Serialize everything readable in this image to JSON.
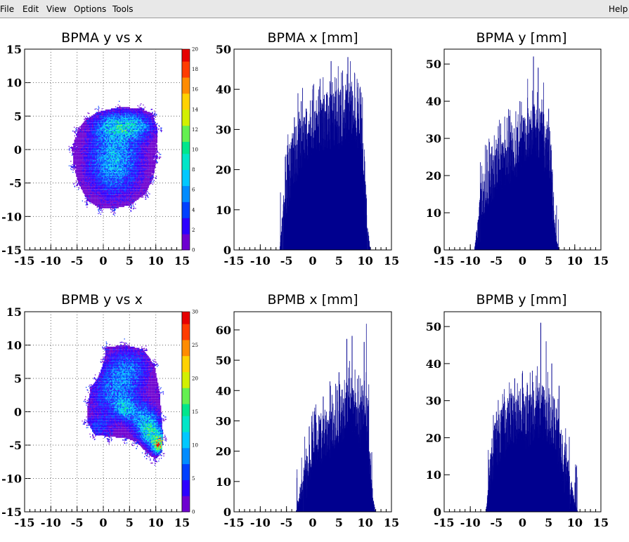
{
  "menubar": {
    "items": [
      {
        "id": "file",
        "label": "File"
      },
      {
        "id": "edit",
        "label": "Edit"
      },
      {
        "id": "view",
        "label": "View"
      },
      {
        "id": "options",
        "label": "Options"
      },
      {
        "id": "tools",
        "label": "Tools"
      }
    ],
    "help": "Help"
  },
  "colors": {
    "histogram_fill": "#00008f",
    "palette": [
      "#6e00d0",
      "#2c00ff",
      "#0040ff",
      "#008cff",
      "#00c8ff",
      "#00e6c8",
      "#00e68c",
      "#64f050",
      "#d2f000",
      "#ffd200",
      "#ff8c00",
      "#ff3c00",
      "#e60000"
    ]
  },
  "chart_data": [
    {
      "type": "heatmap",
      "title": "BPMA y vs x",
      "xlim": [
        -15,
        15
      ],
      "ylim": [
        -15,
        15
      ],
      "xticks": [
        "-15",
        "-10",
        "-5",
        "0",
        "5",
        "10",
        "15"
      ],
      "yticks": [
        "-15",
        "-10",
        "-5",
        "0",
        "5",
        "10",
        "15"
      ],
      "grid": true,
      "colorbar": {
        "min": 0,
        "max": 20,
        "labels": [
          "0",
          "2",
          "4",
          "6",
          "8",
          "10",
          "12",
          "14",
          "16",
          "18",
          "20"
        ]
      },
      "blobs": [
        {
          "cx": 2.0,
          "cy": -1.5,
          "sx": 3.6,
          "sy": 3.8,
          "amp": 6
        },
        {
          "cx": 5.0,
          "cy": 3.5,
          "sx": 3.0,
          "sy": 1.3,
          "amp": 6
        },
        {
          "cx": 0.5,
          "cy": 3.5,
          "sx": 1.8,
          "sy": 1.2,
          "amp": 2
        }
      ],
      "outline": [
        [
          -1,
          5.6
        ],
        [
          3,
          6.3
        ],
        [
          7,
          6.1
        ],
        [
          9.3,
          5.3
        ],
        [
          10.2,
          3
        ],
        [
          10.2,
          -1
        ],
        [
          9.4,
          -4.2
        ],
        [
          8,
          -6.6
        ],
        [
          5.2,
          -8.3
        ],
        [
          2,
          -8.9
        ],
        [
          -0.8,
          -8.8
        ],
        [
          -3.2,
          -7.6
        ],
        [
          -4.8,
          -5.2
        ],
        [
          -5.8,
          -2.5
        ],
        [
          -6.0,
          0.2
        ],
        [
          -5,
          2.8
        ],
        [
          -3.2,
          4.6
        ]
      ]
    },
    {
      "type": "bar",
      "title": "BPMA x [mm]",
      "xlim": [
        -15,
        15
      ],
      "ylim": [
        0,
        50
      ],
      "xticks": [
        "-15",
        "-10",
        "-5",
        "0",
        "5",
        "10",
        "15"
      ],
      "yticks": [
        "0",
        "10",
        "20",
        "30",
        "40",
        "50"
      ],
      "envelope": [
        [
          -15,
          0
        ],
        [
          -6.3,
          0
        ],
        [
          -5.8,
          6
        ],
        [
          -5.0,
          17
        ],
        [
          -4,
          22
        ],
        [
          -2,
          28
        ],
        [
          0,
          31
        ],
        [
          2,
          32
        ],
        [
          4,
          33
        ],
        [
          6,
          34
        ],
        [
          7,
          35
        ],
        [
          8,
          34
        ],
        [
          9,
          31
        ],
        [
          9.5,
          26
        ],
        [
          10.0,
          14
        ],
        [
          10.5,
          4
        ],
        [
          11.0,
          0
        ],
        [
          15,
          0
        ]
      ],
      "noise": 7,
      "peaks": [
        [
          -4.8,
          25
        ],
        [
          -3.5,
          33
        ],
        [
          -2.8,
          39
        ],
        [
          -2.2,
          37
        ],
        [
          0,
          40
        ],
        [
          2,
          43
        ],
        [
          3.5,
          47
        ],
        [
          5.5,
          42
        ],
        [
          6.7,
          48
        ],
        [
          8,
          44
        ],
        [
          9.5,
          38
        ]
      ]
    },
    {
      "type": "bar",
      "title": "BPMA y [mm]",
      "xlim": [
        -15,
        15
      ],
      "ylim": [
        0,
        54
      ],
      "xticks": [
        "-15",
        "-10",
        "-5",
        "0",
        "5",
        "10",
        "15"
      ],
      "yticks": [
        "0",
        "10",
        "20",
        "30",
        "40",
        "50"
      ],
      "envelope": [
        [
          -15,
          0
        ],
        [
          -9.2,
          0
        ],
        [
          -8.6,
          6
        ],
        [
          -8.0,
          12
        ],
        [
          -7,
          17
        ],
        [
          -5,
          22
        ],
        [
          -3,
          25
        ],
        [
          -1,
          28
        ],
        [
          1,
          31
        ],
        [
          2,
          33
        ],
        [
          3,
          32
        ],
        [
          4,
          30
        ],
        [
          5,
          27
        ],
        [
          5.5,
          20
        ],
        [
          6.0,
          8
        ],
        [
          6.5,
          2
        ],
        [
          7,
          0
        ],
        [
          15,
          0
        ]
      ],
      "noise": 7,
      "peaks": [
        [
          -8,
          18
        ],
        [
          -6,
          26
        ],
        [
          -4.2,
          34
        ],
        [
          -2.5,
          36
        ],
        [
          -0.5,
          40
        ],
        [
          1,
          46
        ],
        [
          2.1,
          52
        ],
        [
          3,
          49
        ],
        [
          4,
          45
        ],
        [
          5,
          38
        ]
      ]
    },
    {
      "type": "heatmap",
      "title": "BPMB y vs x",
      "xlim": [
        -15,
        15
      ],
      "ylim": [
        -15,
        15
      ],
      "xticks": [
        "-15",
        "-10",
        "-5",
        "0",
        "5",
        "10",
        "15"
      ],
      "yticks": [
        "-15",
        "-10",
        "-5",
        "0",
        "5",
        "10",
        "15"
      ],
      "grid": true,
      "colorbar": {
        "min": 0,
        "max": 30,
        "labels": [
          "0",
          "5",
          "10",
          "15",
          "20",
          "25",
          "30"
        ]
      },
      "blobs": [
        {
          "cx": 4.5,
          "cy": 6.5,
          "sx": 3.0,
          "sy": 2.2,
          "amp": 6
        },
        {
          "cx": 2.0,
          "cy": 2.5,
          "sx": 3.2,
          "sy": 2.5,
          "amp": 6
        },
        {
          "cx": 4.0,
          "cy": 0.5,
          "sx": 1.2,
          "sy": 1.0,
          "amp": 7
        },
        {
          "cx": 7.5,
          "cy": -1.0,
          "sx": 2.0,
          "sy": 1.6,
          "amp": 7
        },
        {
          "cx": 9.0,
          "cy": -3.2,
          "sx": 1.5,
          "sy": 1.3,
          "amp": 11
        },
        {
          "cx": 10.5,
          "cy": -5.0,
          "sx": 0.9,
          "sy": 0.9,
          "amp": 20
        },
        {
          "cx": -1.0,
          "cy": -2.5,
          "sx": 2.0,
          "sy": 1.4,
          "amp": 4
        }
      ],
      "outline": [
        [
          0.5,
          9.6
        ],
        [
          4,
          10
        ],
        [
          7.5,
          9.3
        ],
        [
          9.6,
          7
        ],
        [
          10.6,
          3
        ],
        [
          11.0,
          -1
        ],
        [
          11.3,
          -4
        ],
        [
          11.0,
          -6.2
        ],
        [
          9.8,
          -7.2
        ],
        [
          8.2,
          -6.2
        ],
        [
          6.2,
          -4.6
        ],
        [
          4,
          -4.0
        ],
        [
          1.0,
          -3.8
        ],
        [
          -1.8,
          -3.5
        ],
        [
          -3.2,
          -1.5
        ],
        [
          -3.0,
          1.5
        ],
        [
          -2.5,
          3.5
        ],
        [
          -1.0,
          5.0
        ],
        [
          0.0,
          7.5
        ]
      ]
    },
    {
      "type": "bar",
      "title": "BPMB x [mm]",
      "xlim": [
        -15,
        15
      ],
      "ylim": [
        0,
        66
      ],
      "xticks": [
        "-15",
        "-10",
        "-5",
        "0",
        "5",
        "10",
        "15"
      ],
      "yticks": [
        "0",
        "10",
        "20",
        "30",
        "40",
        "50",
        "60"
      ],
      "envelope": [
        [
          -15,
          0
        ],
        [
          -3.2,
          0
        ],
        [
          -2.8,
          3
        ],
        [
          -2.0,
          8
        ],
        [
          -1,
          14
        ],
        [
          0,
          22
        ],
        [
          2,
          26
        ],
        [
          4,
          28
        ],
        [
          6,
          32
        ],
        [
          7,
          36
        ],
        [
          8,
          34
        ],
        [
          9,
          30
        ],
        [
          10,
          38
        ],
        [
          10.6,
          28
        ],
        [
          11.0,
          12
        ],
        [
          11.5,
          3
        ],
        [
          12,
          0
        ],
        [
          15,
          0
        ]
      ],
      "noise": 8,
      "peaks": [
        [
          0.5,
          32
        ],
        [
          2,
          38
        ],
        [
          3.3,
          43
        ],
        [
          5,
          46
        ],
        [
          6.5,
          57
        ],
        [
          7.5,
          58
        ],
        [
          8.5,
          52
        ],
        [
          9.8,
          56
        ],
        [
          10.2,
          62
        ],
        [
          10.7,
          42
        ]
      ]
    },
    {
      "type": "bar",
      "title": "BPMB y [mm]",
      "xlim": [
        -15,
        15
      ],
      "ylim": [
        0,
        54
      ],
      "xticks": [
        "-15",
        "-10",
        "-5",
        "0",
        "5",
        "10",
        "15"
      ],
      "yticks": [
        "0",
        "10",
        "20",
        "30",
        "40",
        "50"
      ],
      "envelope": [
        [
          -15,
          0
        ],
        [
          -7.0,
          0
        ],
        [
          -6.6,
          6
        ],
        [
          -6.0,
          14
        ],
        [
          -5,
          19
        ],
        [
          -3,
          24
        ],
        [
          0,
          25
        ],
        [
          2,
          26
        ],
        [
          3,
          28
        ],
        [
          4,
          28
        ],
        [
          5,
          25
        ],
        [
          6,
          24
        ],
        [
          7,
          20
        ],
        [
          7.5,
          14
        ],
        [
          8.5,
          12
        ],
        [
          9.5,
          5
        ],
        [
          10.2,
          1
        ],
        [
          10.6,
          0
        ],
        [
          15,
          0
        ]
      ],
      "noise": 7,
      "peaks": [
        [
          -5,
          27
        ],
        [
          -3.5,
          31
        ],
        [
          -1.5,
          36
        ],
        [
          0,
          38
        ],
        [
          2,
          35
        ],
        [
          3.5,
          51
        ],
        [
          4.5,
          46
        ],
        [
          5.6,
          40
        ],
        [
          7,
          34
        ]
      ]
    }
  ]
}
